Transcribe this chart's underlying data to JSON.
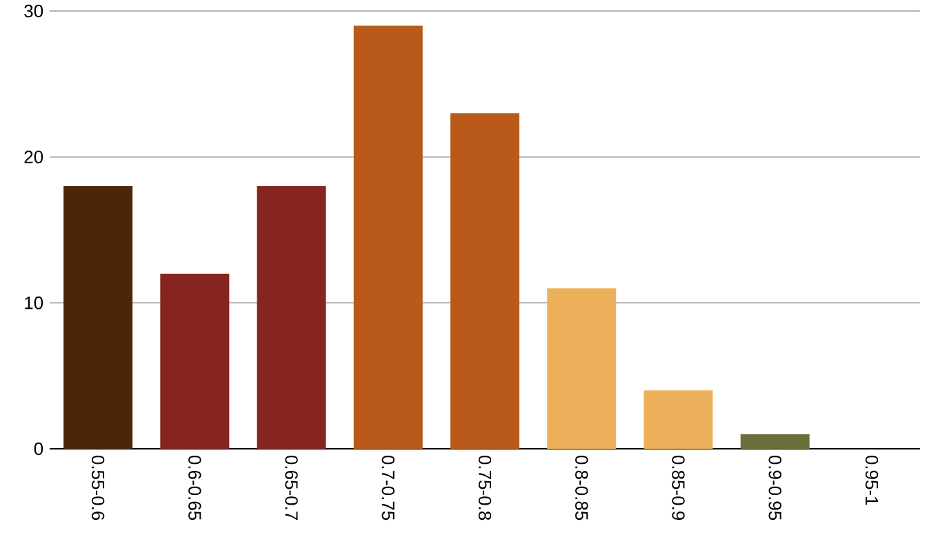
{
  "chart_data": {
    "type": "bar",
    "categories": [
      "0.55-0.6",
      "0.6-0.65",
      "0.65-0.7",
      "0.7-0.75",
      "0.75-0.8",
      "0.8-0.85",
      "0.85-0.9",
      "0.9-0.95",
      "0.95-1"
    ],
    "values": [
      18,
      12,
      18,
      29,
      23,
      11,
      4,
      1,
      0
    ],
    "colors": [
      "#4d2609",
      "#862420",
      "#862420",
      "#b95a1a",
      "#b95a1a",
      "#edb05a",
      "#edb05a",
      "#6b6f3c",
      null
    ],
    "ylim": [
      0,
      30
    ],
    "yticks": [
      0,
      10,
      20,
      30
    ],
    "grid": "y"
  }
}
